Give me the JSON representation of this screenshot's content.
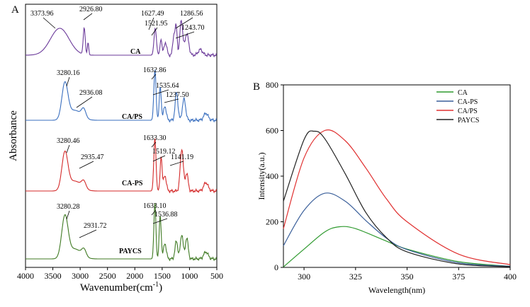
{
  "chart_data": [
    {
      "panel": "A",
      "type": "line",
      "xlabel": "Wavenumber(cm",
      "xlabel_sup": "-1",
      "xlabel_close": ")",
      "ylabel": "Absorbance",
      "xlim": [
        4000,
        500
      ],
      "x_reversed": true,
      "xticks": [
        "4000",
        "3500",
        "3000",
        "2500",
        "2000",
        "1500",
        "1000",
        "500"
      ],
      "yticks": "none",
      "series": [
        {
          "name": "CA",
          "color": "#6b3a9a",
          "peak_labels": [
            "3373.96",
            "2926.80",
            "1627.49",
            "1521.95",
            "1286.56",
            "1243.70"
          ]
        },
        {
          "name": "CA/PS",
          "color": "#3a6fbf",
          "peak_labels": [
            "3280.16",
            "2936.08",
            "1632.86",
            "1535.64",
            "1237.50"
          ]
        },
        {
          "name": "CA-PS",
          "color": "#d42a2a",
          "peak_labels": [
            "3280.46",
            "2935.47",
            "1633.30",
            "1519.12",
            "1141.19"
          ]
        },
        {
          "name": "PAYCS",
          "color": "#3f7a23",
          "peak_labels": [
            "3280.28",
            "2931.72",
            "1633.10",
            "1536.88"
          ]
        }
      ]
    },
    {
      "panel": "B",
      "type": "line",
      "xlabel": "Wavelength(nm)",
      "ylabel": "Intensity(a.u.)",
      "xlim": [
        290,
        400
      ],
      "ylim": [
        0,
        800
      ],
      "xticks": [
        300,
        325,
        350,
        375,
        400
      ],
      "yticks": [
        0,
        200,
        400,
        600,
        800
      ],
      "legend_position": "top-right",
      "series": [
        {
          "name": "CA",
          "color": "#2f9a2f",
          "x": [
            290,
            300,
            310,
            317,
            325,
            340,
            350,
            375,
            400
          ],
          "y": [
            2,
            80,
            155,
            178,
            170,
            115,
            80,
            25,
            5
          ]
        },
        {
          "name": "CA-PS",
          "color": "#3a5f9a",
          "x": [
            290,
            300,
            310,
            320,
            330,
            340,
            350,
            375,
            400
          ],
          "y": [
            95,
            250,
            325,
            290,
            205,
            128,
            78,
            20,
            5
          ]
        },
        {
          "name": "CA/PS",
          "color": "#e03030",
          "x": [
            290,
            300,
            310,
            320,
            330,
            340,
            350,
            375,
            400
          ],
          "y": [
            170,
            480,
            600,
            555,
            435,
            300,
            200,
            58,
            12
          ]
        },
        {
          "name": "PAYCS",
          "color": "#222222",
          "x": [
            290,
            300,
            305,
            310,
            320,
            330,
            340,
            350,
            375,
            400
          ],
          "y": [
            290,
            560,
            597,
            565,
            410,
            240,
            130,
            68,
            15,
            3
          ]
        }
      ]
    }
  ]
}
